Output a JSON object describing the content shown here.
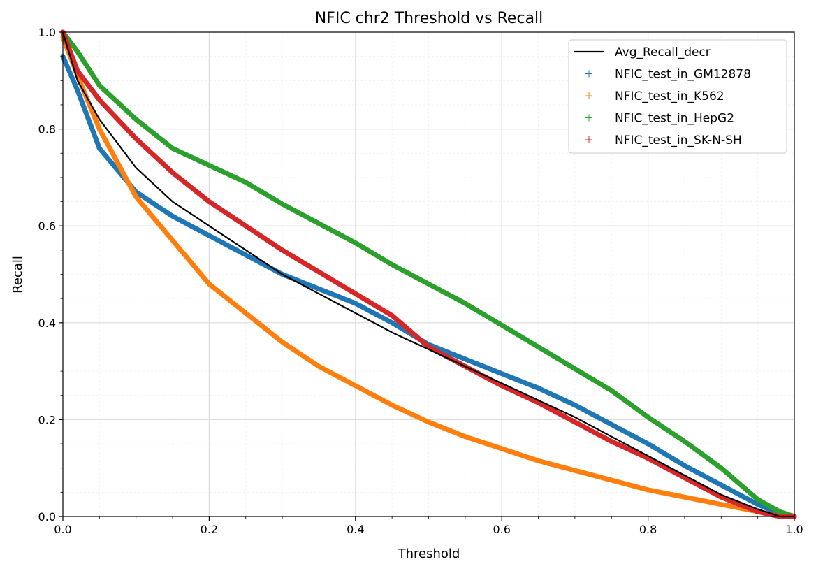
{
  "chart_data": {
    "type": "line",
    "title": "NFIC chr2 Threshold vs Recall",
    "xlabel": "Threshold",
    "ylabel": "Recall",
    "xlim": [
      0.0,
      1.0
    ],
    "ylim": [
      0.0,
      1.0
    ],
    "x_ticks": [
      "0.0",
      "0.2",
      "0.4",
      "0.6",
      "0.8",
      "1.0"
    ],
    "y_ticks": [
      "0.0",
      "0.2",
      "0.4",
      "0.6",
      "0.8",
      "1.0"
    ],
    "grid": true,
    "minor_grid": true,
    "legend_position": "top-right",
    "x": [
      0.0,
      0.02,
      0.05,
      0.1,
      0.15,
      0.2,
      0.25,
      0.3,
      0.35,
      0.4,
      0.45,
      0.5,
      0.55,
      0.6,
      0.65,
      0.7,
      0.75,
      0.8,
      0.85,
      0.9,
      0.95,
      0.98,
      1.0
    ],
    "series": [
      {
        "name": "Avg_Recall_decr",
        "style": "line",
        "color": "#000000",
        "values": [
          1.0,
          0.9,
          0.82,
          0.72,
          0.65,
          0.6,
          0.55,
          0.5,
          0.46,
          0.42,
          0.38,
          0.345,
          0.31,
          0.275,
          0.24,
          0.205,
          0.165,
          0.125,
          0.085,
          0.045,
          0.015,
          0.0,
          0.0
        ]
      },
      {
        "name": "NFIC_test_in_GM12878",
        "style": "markers",
        "color": "#1f77b4",
        "values": [
          0.95,
          0.88,
          0.76,
          0.67,
          0.62,
          0.58,
          0.54,
          0.5,
          0.47,
          0.44,
          0.4,
          0.355,
          0.325,
          0.295,
          0.265,
          0.23,
          0.19,
          0.15,
          0.105,
          0.065,
          0.025,
          0.005,
          0.0
        ]
      },
      {
        "name": "NFIC_test_in_K562",
        "style": "markers",
        "color": "#ff7f0e",
        "values": [
          0.99,
          0.91,
          0.8,
          0.66,
          0.57,
          0.48,
          0.42,
          0.36,
          0.31,
          0.27,
          0.23,
          0.195,
          0.165,
          0.14,
          0.115,
          0.095,
          0.075,
          0.055,
          0.04,
          0.025,
          0.01,
          0.0,
          0.0
        ]
      },
      {
        "name": "NFIC_test_in_HepG2",
        "style": "markers",
        "color": "#2ca02c",
        "values": [
          1.0,
          0.96,
          0.89,
          0.82,
          0.76,
          0.725,
          0.69,
          0.645,
          0.605,
          0.565,
          0.52,
          0.48,
          0.44,
          0.395,
          0.35,
          0.305,
          0.26,
          0.205,
          0.155,
          0.1,
          0.035,
          0.01,
          0.0
        ]
      },
      {
        "name": "NFIC_test_in_SK-N-SH",
        "style": "markers",
        "color": "#d62728",
        "values": [
          1.0,
          0.92,
          0.86,
          0.78,
          0.71,
          0.65,
          0.6,
          0.55,
          0.505,
          0.46,
          0.415,
          0.35,
          0.31,
          0.27,
          0.235,
          0.195,
          0.155,
          0.12,
          0.08,
          0.04,
          0.01,
          0.0,
          0.0
        ]
      }
    ]
  }
}
